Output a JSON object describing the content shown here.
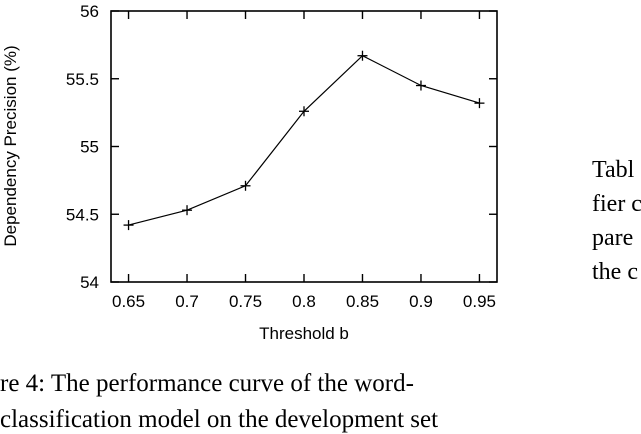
{
  "chart_data": {
    "type": "line",
    "x": [
      0.65,
      0.7,
      0.75,
      0.8,
      0.85,
      0.9,
      0.95
    ],
    "x_tick_labels": [
      "0.65",
      "0.7",
      "0.75",
      "0.8",
      "0.85",
      "0.9",
      "0.95"
    ],
    "y": [
      54.42,
      54.53,
      54.71,
      55.26,
      55.67,
      55.45,
      55.32
    ],
    "y_tick_values": [
      54,
      54.5,
      55,
      55.5,
      56
    ],
    "y_tick_labels": [
      "54",
      "54.5",
      "55",
      "55.5",
      "56"
    ],
    "xlim": [
      0.635,
      0.965
    ],
    "ylim": [
      54,
      56
    ],
    "xlabel": "Threshold b",
    "ylabel": "Dependency Precision (%)",
    "marker": "plus",
    "grid": false,
    "line_color": "#000000"
  },
  "side_text": {
    "line1": "Tabl",
    "line2": "fier c",
    "line3": "pare",
    "line4": "the c"
  },
  "caption": {
    "line1": "re 4:  The performance curve of the word-",
    "line2": "classification model on the development set"
  }
}
